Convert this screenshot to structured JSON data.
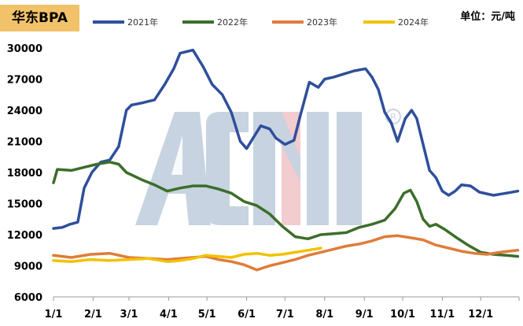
{
  "header": {
    "title": "华东BPA",
    "unit": "单位：元/吨"
  },
  "chart_data": {
    "type": "line",
    "title": "华东BPA",
    "unit": "单位：元/吨",
    "xlabel": "",
    "ylabel": "",
    "x_ticks": [
      "1/1",
      "2/1",
      "3/1",
      "4/1",
      "5/1",
      "6/1",
      "7/1",
      "8/1",
      "9/1",
      "10/1",
      "11/1",
      "12/1"
    ],
    "ylim": [
      6000,
      30000
    ],
    "y_ticks": [
      6000,
      9000,
      12000,
      15000,
      18000,
      21000,
      24000,
      27000,
      30000
    ],
    "grid": false,
    "legend_position": "top",
    "watermark": "ACMI logo",
    "series": [
      {
        "name": "2021年",
        "color": "#2f4f9b",
        "points": [
          [
            1,
            12600
          ],
          [
            8,
            12700
          ],
          [
            14,
            13000
          ],
          [
            20,
            13200
          ],
          [
            25,
            16500
          ],
          [
            31,
            18000
          ],
          [
            38,
            19000
          ],
          [
            45,
            19200
          ],
          [
            52,
            20500
          ],
          [
            58,
            24000
          ],
          [
            62,
            24500
          ],
          [
            70,
            24700
          ],
          [
            80,
            25000
          ],
          [
            88,
            26500
          ],
          [
            95,
            28000
          ],
          [
            100,
            29500
          ],
          [
            110,
            29800
          ],
          [
            118,
            28200
          ],
          [
            125,
            26500
          ],
          [
            133,
            25500
          ],
          [
            140,
            23800
          ],
          [
            147,
            21000
          ],
          [
            152,
            20300
          ],
          [
            158,
            21500
          ],
          [
            163,
            22500
          ],
          [
            170,
            22200
          ],
          [
            175,
            21300
          ],
          [
            182,
            20700
          ],
          [
            189,
            21100
          ],
          [
            194,
            23500
          ],
          [
            201,
            26700
          ],
          [
            208,
            26200
          ],
          [
            213,
            27000
          ],
          [
            220,
            27200
          ],
          [
            228,
            27500
          ],
          [
            236,
            27800
          ],
          [
            245,
            28000
          ],
          [
            250,
            27200
          ],
          [
            255,
            26000
          ],
          [
            260,
            23800
          ],
          [
            265,
            22800
          ],
          [
            270,
            21000
          ],
          [
            276,
            23200
          ],
          [
            281,
            24000
          ],
          [
            285,
            23200
          ],
          [
            290,
            20700
          ],
          [
            295,
            18200
          ],
          [
            300,
            17500
          ],
          [
            305,
            16200
          ],
          [
            310,
            15800
          ],
          [
            315,
            16200
          ],
          [
            320,
            16800
          ],
          [
            327,
            16700
          ],
          [
            334,
            16100
          ],
          [
            345,
            15800
          ],
          [
            355,
            16000
          ],
          [
            364,
            16200
          ]
        ]
      },
      {
        "name": "2022年",
        "color": "#3c6e2b",
        "points": [
          [
            1,
            17000
          ],
          [
            4,
            18300
          ],
          [
            15,
            18200
          ],
          [
            25,
            18500
          ],
          [
            35,
            18800
          ],
          [
            45,
            19000
          ],
          [
            52,
            18800
          ],
          [
            58,
            18000
          ],
          [
            70,
            17300
          ],
          [
            80,
            16800
          ],
          [
            90,
            16200
          ],
          [
            100,
            16500
          ],
          [
            110,
            16700
          ],
          [
            120,
            16700
          ],
          [
            130,
            16400
          ],
          [
            140,
            16000
          ],
          [
            150,
            15200
          ],
          [
            160,
            14800
          ],
          [
            170,
            14000
          ],
          [
            180,
            12800
          ],
          [
            190,
            11800
          ],
          [
            200,
            11600
          ],
          [
            210,
            12000
          ],
          [
            220,
            12100
          ],
          [
            230,
            12200
          ],
          [
            240,
            12700
          ],
          [
            250,
            13000
          ],
          [
            260,
            13400
          ],
          [
            268,
            14500
          ],
          [
            275,
            16000
          ],
          [
            280,
            16300
          ],
          [
            285,
            15200
          ],
          [
            290,
            13500
          ],
          [
            295,
            12800
          ],
          [
            300,
            13000
          ],
          [
            307,
            12500
          ],
          [
            315,
            11800
          ],
          [
            325,
            11000
          ],
          [
            335,
            10300
          ],
          [
            345,
            10100
          ],
          [
            355,
            10000
          ],
          [
            364,
            9900
          ]
        ]
      },
      {
        "name": "2023年",
        "color": "#e07c3a",
        "points": [
          [
            1,
            10000
          ],
          [
            15,
            9800
          ],
          [
            30,
            10100
          ],
          [
            45,
            10200
          ],
          [
            60,
            9800
          ],
          [
            75,
            9700
          ],
          [
            90,
            9600
          ],
          [
            100,
            9700
          ],
          [
            110,
            9800
          ],
          [
            120,
            9900
          ],
          [
            130,
            9600
          ],
          [
            140,
            9400
          ],
          [
            150,
            9100
          ],
          [
            160,
            8600
          ],
          [
            170,
            9000
          ],
          [
            180,
            9300
          ],
          [
            190,
            9600
          ],
          [
            200,
            10000
          ],
          [
            210,
            10300
          ],
          [
            220,
            10600
          ],
          [
            230,
            10900
          ],
          [
            240,
            11100
          ],
          [
            250,
            11400
          ],
          [
            260,
            11800
          ],
          [
            270,
            11900
          ],
          [
            280,
            11700
          ],
          [
            290,
            11500
          ],
          [
            300,
            11000
          ],
          [
            310,
            10700
          ],
          [
            320,
            10400
          ],
          [
            330,
            10200
          ],
          [
            340,
            10100
          ],
          [
            350,
            10300
          ],
          [
            364,
            10500
          ]
        ]
      },
      {
        "name": "2024年",
        "color": "#f1c200",
        "points": [
          [
            1,
            9500
          ],
          [
            15,
            9400
          ],
          [
            30,
            9600
          ],
          [
            45,
            9500
          ],
          [
            60,
            9600
          ],
          [
            75,
            9700
          ],
          [
            90,
            9400
          ],
          [
            100,
            9500
          ],
          [
            110,
            9700
          ],
          [
            120,
            10000
          ],
          [
            130,
            9900
          ],
          [
            140,
            9800
          ],
          [
            150,
            10100
          ],
          [
            160,
            10200
          ],
          [
            170,
            10000
          ],
          [
            180,
            10100
          ],
          [
            190,
            10300
          ],
          [
            200,
            10500
          ],
          [
            210,
            10700
          ]
        ]
      }
    ]
  }
}
